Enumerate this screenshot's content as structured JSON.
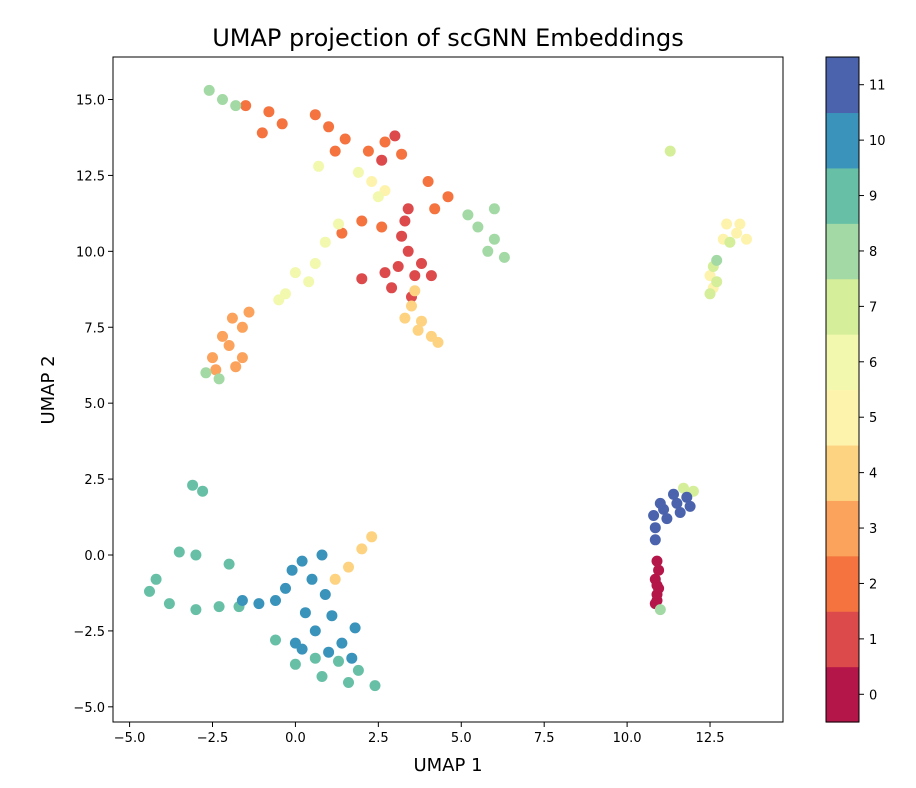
{
  "chart_data": {
    "type": "scatter",
    "title": "UMAP projection of scGNN Embeddings",
    "xlabel": "UMAP 1",
    "ylabel": "UMAP 2",
    "xlim": [
      -5.5,
      14.7
    ],
    "ylim": [
      -5.5,
      16.4
    ],
    "xticks": [
      "−5.0",
      "−2.5",
      "0.0",
      "2.5",
      "5.0",
      "7.5",
      "10.0",
      "12.5"
    ],
    "xtick_values": [
      -5,
      -2.5,
      0,
      2.5,
      5,
      7.5,
      10,
      12.5
    ],
    "yticks": [
      "−5.0",
      "−2.5",
      "0.0",
      "2.5",
      "5.0",
      "7.5",
      "10.0",
      "12.5",
      "15.0"
    ],
    "ytick_values": [
      -5,
      -2.5,
      0,
      2.5,
      5,
      7.5,
      10,
      12.5,
      15
    ],
    "colorbar": {
      "labels": [
        "0",
        "1",
        "2",
        "3",
        "4",
        "5",
        "6",
        "7",
        "8",
        "9",
        "10",
        "11"
      ],
      "colors": [
        "#b5164a",
        "#dc4a4c",
        "#f4733f",
        "#fba25c",
        "#fdd381",
        "#fef3ad",
        "#f2f8ae",
        "#d5ee9a",
        "#a3d9a4",
        "#67c0a6",
        "#3a93bb",
        "#4a63ac"
      ]
    },
    "clusters": [
      {
        "label": "0",
        "points": [
          [
            10.9,
            -1.0
          ],
          [
            10.9,
            -1.3
          ],
          [
            10.85,
            -1.6
          ],
          [
            10.95,
            -0.5
          ],
          [
            10.9,
            -0.2
          ],
          [
            10.85,
            -0.8
          ],
          [
            10.95,
            -1.1
          ],
          [
            10.9,
            -1.5
          ]
        ]
      },
      {
        "label": "1",
        "points": [
          [
            3.2,
            10.5
          ],
          [
            3.4,
            10.0
          ],
          [
            3.1,
            9.5
          ],
          [
            3.6,
            9.2
          ],
          [
            4.1,
            9.2
          ],
          [
            3.3,
            11.0
          ],
          [
            2.9,
            8.8
          ],
          [
            3.5,
            8.5
          ],
          [
            3.8,
            9.6
          ],
          [
            2.7,
            9.3
          ],
          [
            2.0,
            9.1
          ],
          [
            3.4,
            11.4
          ],
          [
            2.6,
            13.0
          ],
          [
            3.0,
            13.8
          ]
        ]
      },
      {
        "label": "2",
        "points": [
          [
            -1.5,
            14.8
          ],
          [
            -0.8,
            14.6
          ],
          [
            -1.0,
            13.9
          ],
          [
            -0.4,
            14.2
          ],
          [
            0.6,
            14.5
          ],
          [
            1.0,
            14.1
          ],
          [
            1.2,
            13.3
          ],
          [
            1.5,
            13.7
          ],
          [
            2.2,
            13.3
          ],
          [
            2.7,
            13.6
          ],
          [
            3.2,
            13.2
          ],
          [
            4.0,
            12.3
          ],
          [
            4.6,
            11.8
          ],
          [
            4.2,
            11.4
          ],
          [
            2.0,
            11.0
          ],
          [
            2.6,
            10.8
          ],
          [
            1.4,
            10.6
          ]
        ]
      },
      {
        "label": "3",
        "points": [
          [
            -1.9,
            7.8
          ],
          [
            -2.2,
            7.2
          ],
          [
            -2.5,
            6.5
          ],
          [
            -1.6,
            7.5
          ],
          [
            -2.0,
            6.9
          ],
          [
            -1.6,
            6.5
          ],
          [
            -2.4,
            6.1
          ],
          [
            -1.4,
            8.0
          ],
          [
            -1.8,
            6.2
          ]
        ]
      },
      {
        "label": "4",
        "points": [
          [
            3.5,
            8.2
          ],
          [
            3.8,
            7.7
          ],
          [
            4.1,
            7.2
          ],
          [
            3.7,
            7.4
          ],
          [
            4.3,
            7.0
          ],
          [
            3.3,
            7.8
          ],
          [
            3.6,
            8.7
          ],
          [
            2.3,
            0.6
          ],
          [
            2.0,
            0.2
          ],
          [
            1.6,
            -0.4
          ],
          [
            1.2,
            -0.8
          ]
        ]
      },
      {
        "label": "5",
        "points": [
          [
            13.0,
            10.9
          ],
          [
            13.3,
            10.6
          ],
          [
            12.9,
            10.4
          ],
          [
            13.4,
            10.9
          ],
          [
            13.6,
            10.4
          ],
          [
            12.5,
            9.2
          ],
          [
            12.6,
            8.8
          ],
          [
            2.3,
            12.3
          ],
          [
            2.7,
            12.0
          ]
        ]
      },
      {
        "label": "6",
        "points": [
          [
            0.9,
            10.3
          ],
          [
            0.6,
            9.6
          ],
          [
            0.4,
            9.0
          ],
          [
            0.0,
            9.3
          ],
          [
            -0.3,
            8.6
          ],
          [
            1.3,
            10.9
          ],
          [
            1.9,
            12.6
          ],
          [
            2.5,
            11.8
          ],
          [
            0.7,
            12.8
          ],
          [
            -0.5,
            8.4
          ]
        ]
      },
      {
        "label": "7",
        "points": [
          [
            12.6,
            9.5
          ],
          [
            12.7,
            9.0
          ],
          [
            12.5,
            8.6
          ],
          [
            11.7,
            2.2
          ],
          [
            12.0,
            2.1
          ],
          [
            11.3,
            13.3
          ],
          [
            13.1,
            10.3
          ]
        ]
      },
      {
        "label": "8",
        "points": [
          [
            -2.6,
            15.3
          ],
          [
            -2.2,
            15.0
          ],
          [
            -1.8,
            14.8
          ],
          [
            5.5,
            10.8
          ],
          [
            6.0,
            10.4
          ],
          [
            5.8,
            10.0
          ],
          [
            6.3,
            9.8
          ],
          [
            5.2,
            11.2
          ],
          [
            6.0,
            11.4
          ],
          [
            12.7,
            9.7
          ],
          [
            -2.7,
            6.0
          ],
          [
            -2.3,
            5.8
          ],
          [
            11.0,
            -1.8
          ]
        ]
      },
      {
        "label": "9",
        "points": [
          [
            -4.4,
            -1.2
          ],
          [
            -4.2,
            -0.8
          ],
          [
            -3.8,
            -1.6
          ],
          [
            -3.5,
            0.1
          ],
          [
            -3.0,
            0.0
          ],
          [
            -2.0,
            -0.3
          ],
          [
            -1.7,
            -1.7
          ],
          [
            -3.0,
            -1.8
          ],
          [
            -2.3,
            -1.7
          ],
          [
            0.0,
            -3.6
          ],
          [
            0.8,
            -4.0
          ],
          [
            1.6,
            -4.2
          ],
          [
            2.4,
            -4.3
          ],
          [
            1.9,
            -3.8
          ],
          [
            1.3,
            -3.5
          ],
          [
            0.6,
            -3.4
          ],
          [
            -0.6,
            -2.8
          ],
          [
            -3.1,
            2.3
          ],
          [
            -2.8,
            2.1
          ]
        ]
      },
      {
        "label": "10",
        "points": [
          [
            0.2,
            -0.2
          ],
          [
            0.5,
            -0.8
          ],
          [
            0.9,
            -1.3
          ],
          [
            0.3,
            -1.9
          ],
          [
            0.6,
            -2.5
          ],
          [
            1.1,
            -2.0
          ],
          [
            1.4,
            -2.9
          ],
          [
            1.7,
            -3.4
          ],
          [
            0.0,
            -2.9
          ],
          [
            -0.3,
            -1.1
          ],
          [
            -0.6,
            -1.5
          ],
          [
            -1.1,
            -1.6
          ],
          [
            -1.6,
            -1.5
          ],
          [
            0.8,
            0.0
          ],
          [
            1.0,
            -3.2
          ],
          [
            0.2,
            -3.1
          ],
          [
            1.8,
            -2.4
          ],
          [
            -0.1,
            -0.5
          ]
        ]
      },
      {
        "label": "11",
        "points": [
          [
            10.8,
            1.3
          ],
          [
            11.1,
            1.5
          ],
          [
            11.5,
            1.7
          ],
          [
            11.8,
            1.9
          ],
          [
            11.2,
            1.2
          ],
          [
            11.6,
            1.4
          ],
          [
            11.9,
            1.6
          ],
          [
            11.0,
            1.7
          ],
          [
            11.4,
            2.0
          ],
          [
            10.85,
            0.5
          ],
          [
            10.85,
            0.9
          ]
        ]
      }
    ]
  }
}
